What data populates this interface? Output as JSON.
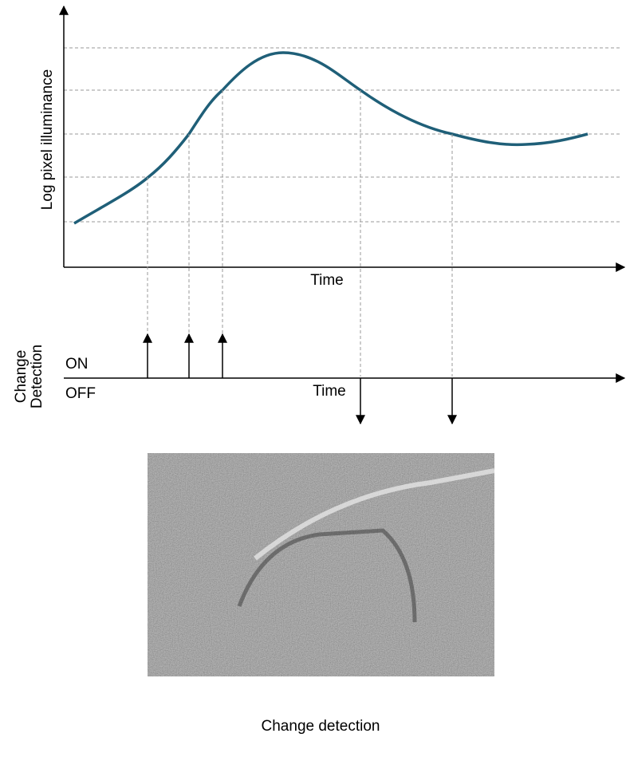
{
  "plot": {
    "y_axis_label": "Log pixel illuminance",
    "x_axis_label": "Time"
  },
  "detection": {
    "label_lines": [
      "Change",
      "Detection"
    ],
    "on": "ON",
    "off": "OFF",
    "axis_label": "Time"
  },
  "image": {
    "caption": "Change detection"
  }
}
